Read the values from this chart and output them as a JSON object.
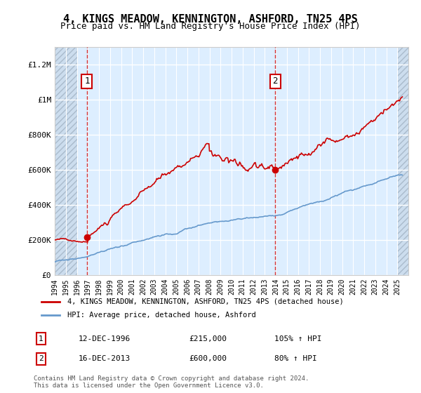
{
  "title": "4, KINGS MEADOW, KENNINGTON, ASHFORD, TN25 4PS",
  "subtitle": "Price paid vs. HM Land Registry's House Price Index (HPI)",
  "legend_line1": "4, KINGS MEADOW, KENNINGTON, ASHFORD, TN25 4PS (detached house)",
  "legend_line2": "HPI: Average price, detached house, Ashford",
  "annotation1_date": "12-DEC-1996",
  "annotation1_price": "£215,000",
  "annotation1_hpi": "105% ↑ HPI",
  "annotation2_date": "16-DEC-2013",
  "annotation2_price": "£600,000",
  "annotation2_hpi": "80% ↑ HPI",
  "footer": "Contains HM Land Registry data © Crown copyright and database right 2024.\nThis data is licensed under the Open Government Licence v3.0.",
  "xmin": 1994.0,
  "xmax": 2026.0,
  "ymin": 0,
  "ymax": 1300000,
  "yticks": [
    0,
    200000,
    400000,
    600000,
    800000,
    1000000,
    1200000
  ],
  "ytick_labels": [
    "£0",
    "£200K",
    "£400K",
    "£600K",
    "£800K",
    "£1M",
    "£1.2M"
  ],
  "hatch_left_xmax": 1996.0,
  "hatch_right_xmin": 2025.0,
  "marker1_x": 1996.92,
  "marker1_y": 215000,
  "marker2_x": 2013.96,
  "marker2_y": 600000,
  "red_color": "#cc0000",
  "blue_color": "#6699cc",
  "background_color": "#ddeeff"
}
